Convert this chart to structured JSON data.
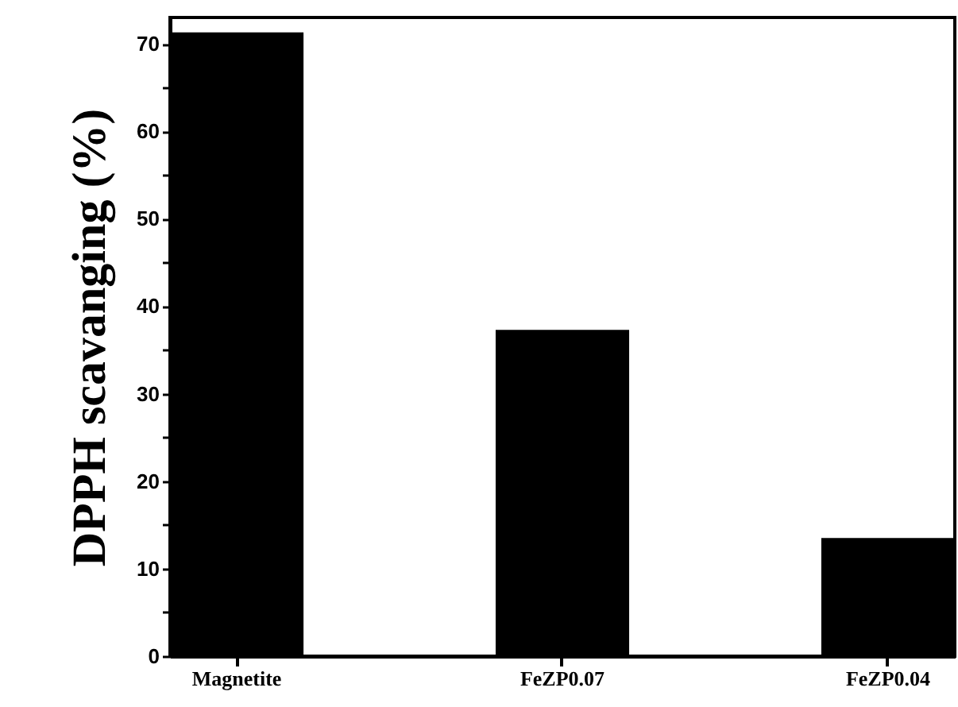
{
  "chart_data": {
    "type": "bar",
    "ylabel": "DPPH scavanging (%)",
    "categories": [
      "Magnetite",
      "FeZP0.07",
      "FeZP0.04"
    ],
    "values": [
      71.3,
      37.3,
      13.5
    ],
    "color": "#000000",
    "ylim": [
      0,
      73
    ],
    "yticks": [
      0,
      {
        "value": 5,
        "label": null
      },
      10,
      {
        "value": 15,
        "label": null
      },
      20,
      {
        "value": 25,
        "label": null
      },
      30,
      {
        "value": 35,
        "label": null
      },
      40,
      {
        "value": 45,
        "label": null
      },
      50,
      {
        "value": 55,
        "label": null
      },
      60,
      {
        "value": 65,
        "label": null
      },
      70
    ],
    "grid": false
  }
}
